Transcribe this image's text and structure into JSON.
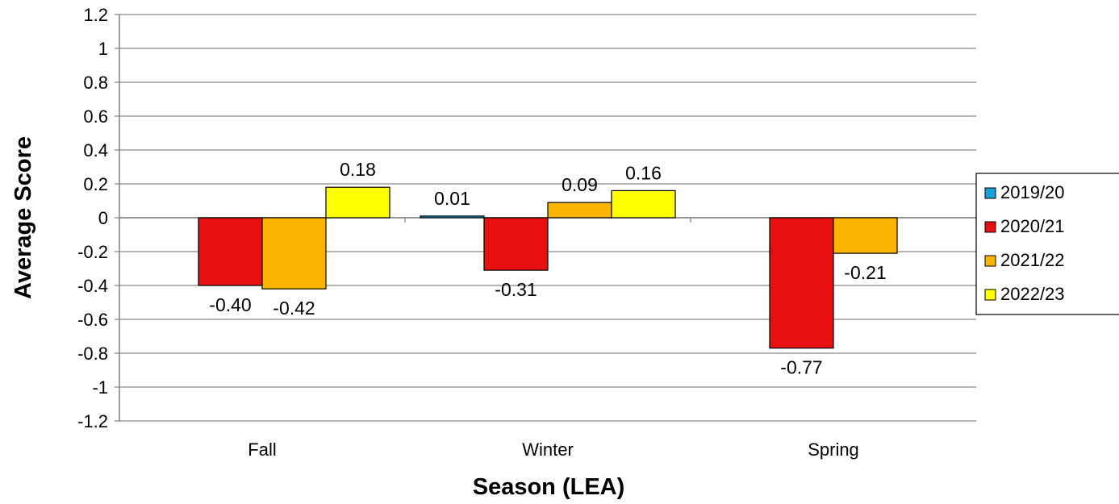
{
  "chart_data": {
    "type": "bar",
    "xlabel": "Season (LEA)",
    "ylabel": "Average Score",
    "categories": [
      "Fall",
      "Winter",
      "Spring"
    ],
    "ylim": [
      -1.2,
      1.2
    ],
    "yticks": [
      "1.2",
      "1",
      "0.8",
      "0.6",
      "0.4",
      "0.2",
      "0",
      "-0.2",
      "-0.4",
      "-0.6",
      "-0.8",
      "-1",
      "-1.2"
    ],
    "grid": true,
    "legend_position": "right",
    "series": [
      {
        "name": "2019/20",
        "color": "#1aa0d8",
        "values": [
          null,
          0.01,
          null
        ],
        "labels": [
          "",
          "0.01",
          ""
        ]
      },
      {
        "name": "2020/21",
        "color": "#e81010",
        "values": [
          -0.4,
          -0.31,
          -0.77
        ],
        "labels": [
          "-0.40",
          "-0.31",
          "-0.77"
        ]
      },
      {
        "name": "2021/22",
        "color": "#fbb400",
        "values": [
          -0.42,
          0.09,
          -0.21
        ],
        "labels": [
          "-0.42",
          "0.09",
          "-0.21"
        ]
      },
      {
        "name": "2022/23",
        "color": "#ffff00",
        "values": [
          0.18,
          0.16,
          null
        ],
        "labels": [
          "0.18",
          "0.16",
          ""
        ]
      }
    ]
  }
}
